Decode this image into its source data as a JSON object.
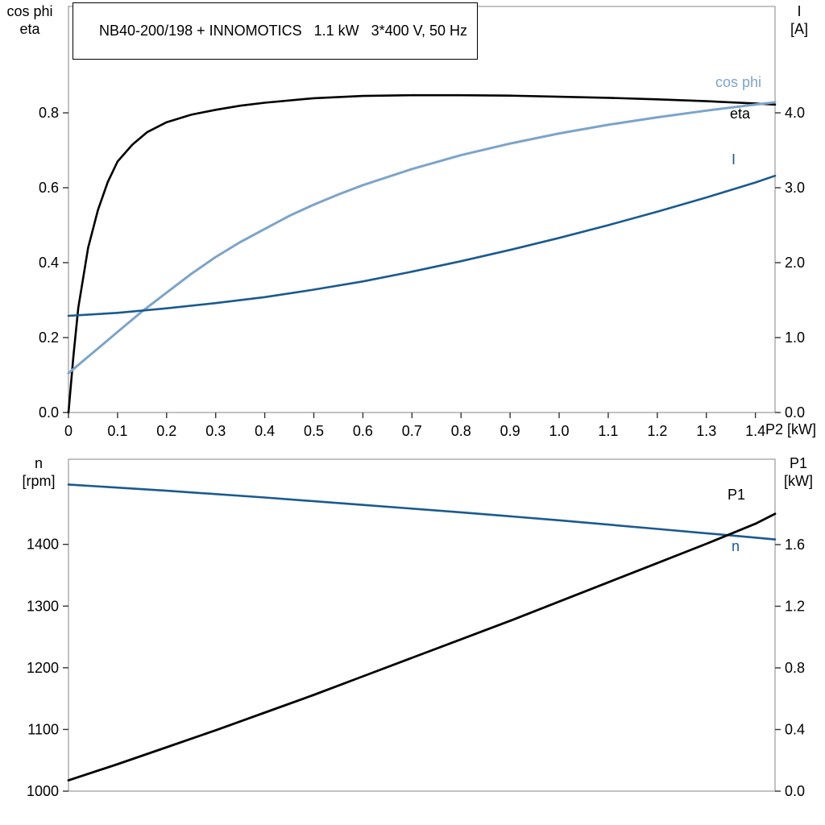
{
  "title": "NB40-200/198 + INNOMOTICS   1.1 kW   3*400 V, 50 Hz",
  "colors": {
    "black_curve": "#000000",
    "cos_phi_curve": "#7da4c8",
    "blue_curve": "#1a5a8f",
    "frame": "#999999",
    "tick": "#333333"
  },
  "top_chart": {
    "left_axis_title": [
      "cos phi",
      "eta"
    ],
    "right_axis_title": [
      "I",
      "[A]"
    ],
    "x_axis_title": "P2 [kW]",
    "curve_labels": {
      "cos_phi": "cos phi",
      "eta": "eta",
      "current": "I"
    }
  },
  "bottom_chart": {
    "left_axis_title": [
      "n",
      "[rpm]"
    ],
    "right_axis_title": [
      "P1",
      "[kW]"
    ],
    "curve_labels": {
      "p1": "P1",
      "n": "n"
    }
  },
  "chart_data": [
    {
      "type": "line",
      "title": "NB40-200/198 + INNOMOTICS   1.1 kW   3*400 V, 50 Hz",
      "xlabel": "P2 [kW]",
      "xlim": [
        0,
        1.44
      ],
      "grid": false,
      "x_ticks": [
        {
          "v": 0,
          "label": "0"
        },
        {
          "v": 0.1,
          "label": "0.1"
        },
        {
          "v": 0.2,
          "label": "0.2"
        },
        {
          "v": 0.3,
          "label": "0.3"
        },
        {
          "v": 0.4,
          "label": "0.4"
        },
        {
          "v": 0.5,
          "label": "0.5"
        },
        {
          "v": 0.6,
          "label": "0.6"
        },
        {
          "v": 0.7,
          "label": "0.7"
        },
        {
          "v": 0.8,
          "label": "0.8"
        },
        {
          "v": 0.9,
          "label": "0.9"
        },
        {
          "v": 1.0,
          "label": "1.0"
        },
        {
          "v": 1.1,
          "label": "1.1"
        },
        {
          "v": 1.2,
          "label": "1.2"
        },
        {
          "v": 1.3,
          "label": "1.3"
        },
        {
          "v": 1.4,
          "label": "1.4"
        }
      ],
      "left_axis": {
        "label": "cos phi / eta",
        "lim": [
          0,
          1.084
        ],
        "ticks": [
          {
            "v": 0.0,
            "label": "0.0"
          },
          {
            "v": 0.2,
            "label": "0.2"
          },
          {
            "v": 0.4,
            "label": "0.4"
          },
          {
            "v": 0.6,
            "label": "0.6"
          },
          {
            "v": 0.8,
            "label": "0.8"
          }
        ]
      },
      "right_axis": {
        "label": "I [A]",
        "lim": [
          0,
          5.42
        ],
        "ticks": [
          {
            "v": 0.0,
            "label": "0.0"
          },
          {
            "v": 1.0,
            "label": "1.0"
          },
          {
            "v": 2.0,
            "label": "2.0"
          },
          {
            "v": 3.0,
            "label": "3.0"
          },
          {
            "v": 4.0,
            "label": "4.0"
          }
        ]
      },
      "series": [
        {
          "name": "eta",
          "axis": "left",
          "color_key": "black_curve",
          "width": 2.6,
          "x": [
            0,
            0.01,
            0.02,
            0.04,
            0.06,
            0.08,
            0.1,
            0.13,
            0.16,
            0.2,
            0.25,
            0.3,
            0.35,
            0.4,
            0.5,
            0.6,
            0.7,
            0.8,
            0.9,
            1.0,
            1.1,
            1.2,
            1.3,
            1.4,
            1.44
          ],
          "y": [
            0,
            0.15,
            0.28,
            0.44,
            0.54,
            0.615,
            0.67,
            0.715,
            0.748,
            0.775,
            0.795,
            0.808,
            0.819,
            0.827,
            0.839,
            0.845,
            0.847,
            0.847,
            0.846,
            0.843,
            0.84,
            0.836,
            0.831,
            0.825,
            0.822
          ]
        },
        {
          "name": "cos phi",
          "axis": "left",
          "color_key": "cos_phi_curve",
          "width": 3,
          "x": [
            0,
            0.05,
            0.1,
            0.15,
            0.2,
            0.25,
            0.3,
            0.35,
            0.4,
            0.45,
            0.5,
            0.55,
            0.6,
            0.7,
            0.8,
            0.9,
            1.0,
            1.1,
            1.2,
            1.3,
            1.4,
            1.44
          ],
          "y": [
            0.105,
            0.16,
            0.215,
            0.27,
            0.32,
            0.37,
            0.415,
            0.455,
            0.49,
            0.525,
            0.555,
            0.582,
            0.607,
            0.65,
            0.687,
            0.718,
            0.745,
            0.768,
            0.788,
            0.806,
            0.822,
            0.828
          ]
        },
        {
          "name": "I",
          "axis": "right",
          "color_key": "blue_curve",
          "width": 2.6,
          "x": [
            0,
            0.1,
            0.2,
            0.3,
            0.4,
            0.5,
            0.6,
            0.7,
            0.8,
            0.9,
            1.0,
            1.1,
            1.2,
            1.3,
            1.4,
            1.44
          ],
          "y": [
            1.29,
            1.33,
            1.39,
            1.46,
            1.54,
            1.64,
            1.75,
            1.88,
            2.02,
            2.17,
            2.33,
            2.5,
            2.68,
            2.87,
            3.07,
            3.16
          ]
        }
      ]
    },
    {
      "type": "line",
      "title": "",
      "xlabel": "P2 [kW]",
      "xlim": [
        0,
        1.44
      ],
      "grid": false,
      "x_ticks": [],
      "left_axis": {
        "label": "n [rpm]",
        "lim": [
          1000,
          1538
        ],
        "ticks": [
          {
            "v": 1000,
            "label": "1000"
          },
          {
            "v": 1100,
            "label": "1100"
          },
          {
            "v": 1200,
            "label": "1200"
          },
          {
            "v": 1300,
            "label": "1300"
          },
          {
            "v": 1400,
            "label": "1400"
          }
        ]
      },
      "right_axis": {
        "label": "P1 [kW]",
        "lim": [
          0,
          2.154
        ],
        "ticks": [
          {
            "v": 0.0,
            "label": "0.0"
          },
          {
            "v": 0.4,
            "label": "0.4"
          },
          {
            "v": 0.8,
            "label": "0.8"
          },
          {
            "v": 1.2,
            "label": "1.2"
          },
          {
            "v": 1.6,
            "label": "1.6"
          }
        ]
      },
      "series": [
        {
          "name": "n",
          "axis": "left",
          "color_key": "blue_curve",
          "width": 2.6,
          "x": [
            0,
            0.2,
            0.4,
            0.6,
            0.8,
            1.0,
            1.2,
            1.3,
            1.4,
            1.44
          ],
          "y": [
            1497,
            1487,
            1476,
            1464,
            1452,
            1439,
            1425,
            1418,
            1411,
            1408
          ]
        },
        {
          "name": "P1",
          "axis": "right",
          "color_key": "black_curve",
          "width": 2.8,
          "x": [
            0,
            0.1,
            0.2,
            0.3,
            0.4,
            0.5,
            0.6,
            0.7,
            0.8,
            0.9,
            1.0,
            1.1,
            1.2,
            1.3,
            1.4,
            1.44
          ],
          "y": [
            0.07,
            0.175,
            0.285,
            0.395,
            0.51,
            0.625,
            0.745,
            0.865,
            0.985,
            1.105,
            1.23,
            1.355,
            1.48,
            1.605,
            1.735,
            1.8
          ]
        }
      ]
    }
  ]
}
